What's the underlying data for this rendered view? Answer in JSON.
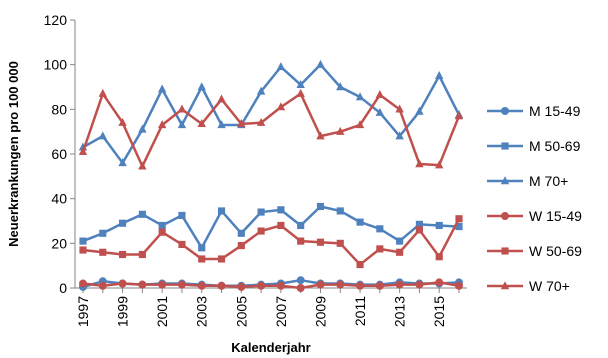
{
  "chart_data": {
    "type": "line",
    "xlabel": "Kalenderjahr",
    "ylabel": "Neuerkrankungen pro 100 000",
    "ylim": [
      0,
      120
    ],
    "yticks": [
      0,
      20,
      40,
      60,
      80,
      100,
      120
    ],
    "xticks": [
      1997,
      1999,
      2001,
      2003,
      2005,
      2007,
      2009,
      2011,
      2013,
      2015
    ],
    "grid": false,
    "legend_position": "right",
    "x": [
      1997,
      1998,
      1999,
      2000,
      2001,
      2002,
      2003,
      2004,
      2005,
      2006,
      2007,
      2008,
      2009,
      2010,
      2011,
      2012,
      2013,
      2014,
      2015,
      2016
    ],
    "series": [
      {
        "name": "M 15-49",
        "color": "#4F81BD",
        "marker": "circle",
        "values": [
          0.5,
          3,
          2,
          1.5,
          2,
          2,
          1.5,
          1,
          1,
          1.5,
          2,
          3.5,
          2,
          2,
          1.5,
          1.5,
          2.5,
          2,
          2,
          2.5
        ]
      },
      {
        "name": "M 50-69",
        "color": "#4F81BD",
        "marker": "square",
        "values": [
          21,
          24.5,
          29,
          33,
          28,
          32.5,
          18,
          34.5,
          24.5,
          34,
          35,
          28,
          36.5,
          34.5,
          29.5,
          26.5,
          21,
          28.5,
          28,
          27.5
        ]
      },
      {
        "name": "M 70+",
        "color": "#4F81BD",
        "marker": "triangle",
        "values": [
          63,
          68,
          56,
          71,
          89,
          73,
          90,
          73,
          73,
          88,
          99,
          91,
          100,
          90,
          85.5,
          78.5,
          68,
          79,
          95,
          77.5
        ]
      },
      {
        "name": "W 15-49",
        "color": "#C0504D",
        "marker": "circle",
        "values": [
          2,
          1,
          2,
          1.5,
          1.5,
          1.5,
          1,
          1,
          0.5,
          1,
          1,
          0,
          1.5,
          1.5,
          1,
          1,
          1.5,
          1.5,
          2.5,
          1
        ]
      },
      {
        "name": "W 50-69",
        "color": "#C0504D",
        "marker": "square",
        "values": [
          17,
          16,
          15,
          15,
          25,
          19.5,
          13,
          13,
          19,
          25.5,
          28,
          21,
          20.5,
          20,
          10.5,
          17.5,
          16,
          26,
          14,
          31
        ]
      },
      {
        "name": "W 70+",
        "color": "#C0504D",
        "marker": "triangle",
        "values": [
          61,
          87,
          74,
          54.5,
          73,
          80,
          73.5,
          84.5,
          73.5,
          74,
          81,
          87,
          68,
          70,
          73,
          86.5,
          80,
          55.5,
          55,
          77
        ]
      }
    ]
  }
}
